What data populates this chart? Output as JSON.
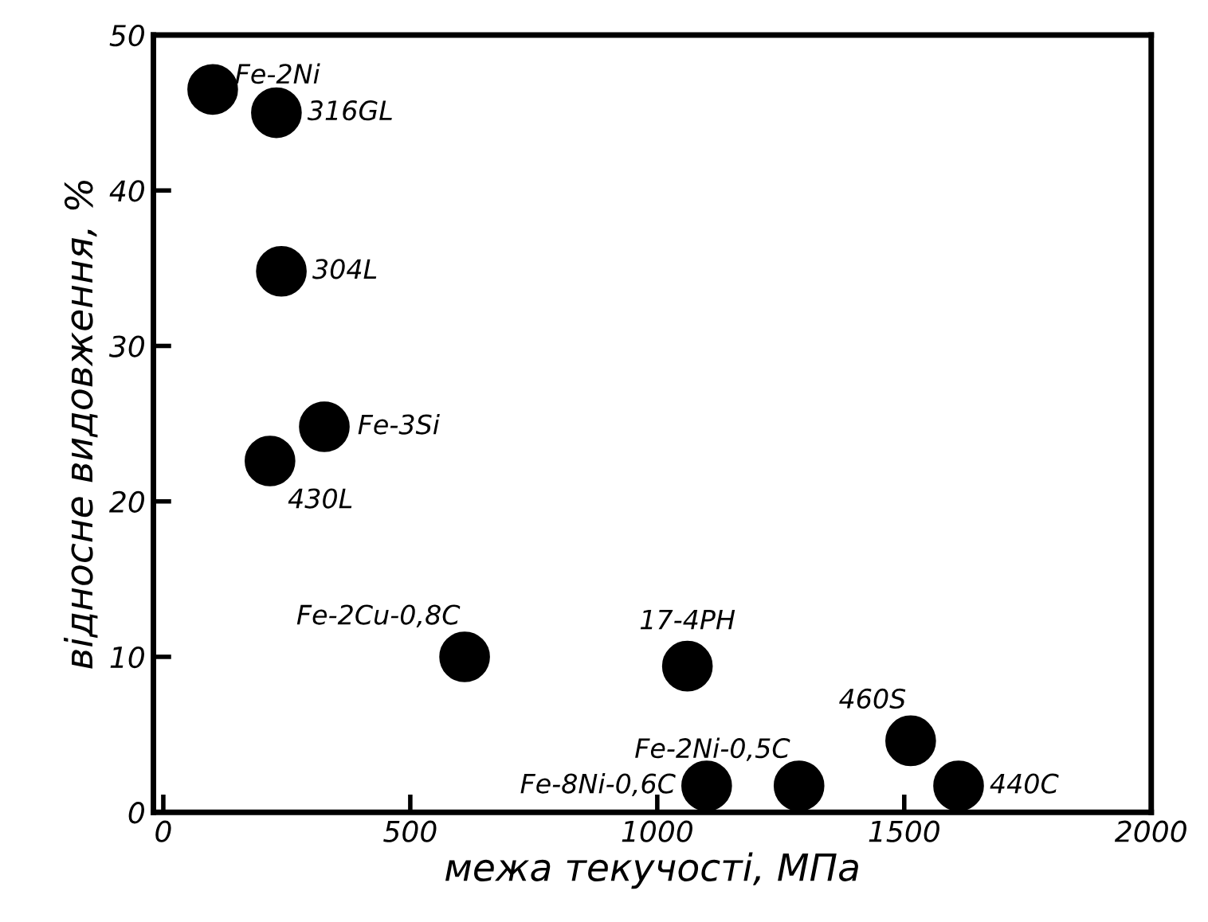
{
  "chart_data": {
    "type": "scatter",
    "xlabel": "межа текучості, МПа",
    "ylabel": "відносне видовження, %",
    "x": [
      100,
      229,
      239,
      326,
      216,
      610,
      1061,
      1513,
      1610,
      1100,
      1287
    ],
    "values": [
      46.5,
      45,
      34.8,
      24.8,
      22.6,
      10,
      9.4,
      4.6,
      1.7,
      1.7,
      1.7
    ],
    "color": "#000000",
    "marker": "circle",
    "annotations": [
      {
        "text": "Fe-2Ni",
        "x": 100,
        "y": 46.5
      },
      {
        "text": "316GL",
        "x": 229,
        "y": 45
      },
      {
        "text": "304L",
        "x": 239,
        "y": 34.8
      },
      {
        "text": "Fe-3Si",
        "x": 326,
        "y": 24.8
      },
      {
        "text": "430L",
        "x": 216,
        "y": 22.6
      },
      {
        "text": "Fe-2Cu-0,8C",
        "x": 610,
        "y": 10
      },
      {
        "text": "17-4PH",
        "x": 1061,
        "y": 9.4
      },
      {
        "text": "460S",
        "x": 1513,
        "y": 4.6
      },
      {
        "text": "440C",
        "x": 1610,
        "y": 1.7
      },
      {
        "text": "Fe-8Ni-0,6C",
        "x": 1100,
        "y": 1.7
      },
      {
        "text": "Fe-2Ni-0,5C",
        "x": 1287,
        "y": 1.7
      }
    ],
    "xlim": [
      -20,
      2000
    ],
    "ylim": [
      0,
      50
    ],
    "xticks": [
      0,
      500,
      1000,
      1500,
      2000
    ],
    "yticks": [
      0,
      10,
      20,
      30,
      40,
      50
    ],
    "grid": false,
    "legend": false
  }
}
